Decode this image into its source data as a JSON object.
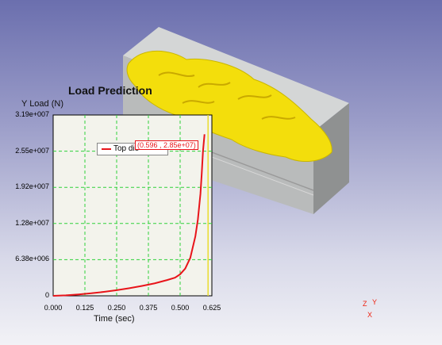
{
  "chart": {
    "title": "Load Prediction",
    "y_caption": "Y  Load (N)",
    "x_caption": "Time (sec)",
    "readout": "(0.596 , 2.85e+07)"
  },
  "axis_triad": {
    "z": "Z",
    "y": "Y",
    "x": "X"
  },
  "colors": {
    "background_top": "#6b6fae",
    "die_block": "#b9bbbb",
    "part": "#f3de0c",
    "grid": "#2fd23a",
    "curve": "#e8141a",
    "marker": "#e9dc2e"
  },
  "icons": [
    "die-block-icon",
    "forged-part-icon",
    "axis-triad-icon"
  ],
  "chart_data": {
    "type": "line",
    "title": "Load Prediction",
    "xlabel": "Time (sec)",
    "ylabel": "Load (N)",
    "xlim": [
      0,
      0.625
    ],
    "ylim": [
      0,
      31900000
    ],
    "x_ticks": [
      "0.000",
      "0.125",
      "0.250",
      "0.375",
      "0.500",
      "0.625"
    ],
    "y_ticks": [
      "0",
      "6.38e+006",
      "1.28e+007",
      "1.92e+007",
      "2.55e+007",
      "3.19e+007"
    ],
    "grid": true,
    "legend_position": "top-left",
    "series": [
      {
        "name": "Top die",
        "x": [
          0,
          0.05,
          0.1,
          0.15,
          0.2,
          0.25,
          0.3,
          0.35,
          0.4,
          0.45,
          0.48,
          0.5,
          0.52,
          0.54,
          0.56,
          0.57,
          0.58,
          0.585,
          0.59,
          0.596
        ],
        "y": [
          0,
          80000,
          250000,
          450000,
          700000,
          1000000,
          1350000,
          1750000,
          2200000,
          2800000,
          3200000,
          3800000,
          4800000,
          6700000,
          10500000,
          13500000,
          18000000,
          21500000,
          25500000,
          28500000
        ]
      }
    ],
    "annotations": [
      {
        "x": 0.596,
        "y": 28500000,
        "text": "(0.596 , 2.85e+07)"
      }
    ],
    "vertical_markers": [
      0.61
    ]
  }
}
